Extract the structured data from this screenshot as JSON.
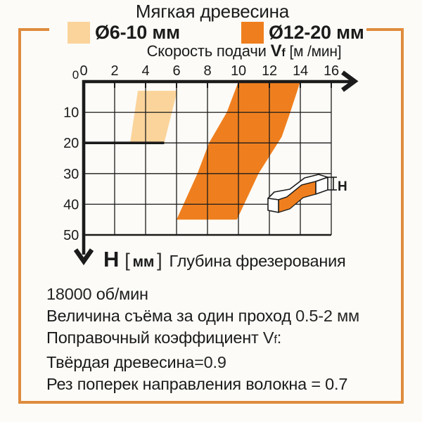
{
  "colors": {
    "accent_dark": "#ef7f1e",
    "accent_light": "#fbd49b",
    "frame": "#df8c3e",
    "ink": "#1b1b1b",
    "background": "#fcfbf7"
  },
  "title": "Мягкая древесина",
  "legend": {
    "items": [
      {
        "label": "Ø6-10 мм",
        "color": "#fbd49b"
      },
      {
        "label": "Ø12-20 мм",
        "color": "#ef7f1e"
      }
    ]
  },
  "x_axis": {
    "name": "Скорость подачи",
    "symbol": "V",
    "symbol_sub": "f",
    "units": "[м /мин]"
  },
  "y_axis": {
    "symbol": "H",
    "units_open": "[",
    "units_text": "мм",
    "units_close": "]",
    "name": "Глубина фрезерования"
  },
  "icon_label": "H",
  "chart_data": {
    "type": "area",
    "title": "Мягкая древесина",
    "xlabel": "Скорость подачи Vf [м/мин]",
    "ylabel": "H [мм] Глубина фрезерования",
    "xlim": [
      0,
      16
    ],
    "ylim": [
      0,
      50
    ],
    "xticks": [
      0,
      2,
      4,
      6,
      8,
      10,
      12,
      14,
      16
    ],
    "yticks": [
      0,
      10,
      20,
      30,
      40,
      50
    ],
    "grid": true,
    "legend_position": "top",
    "series": [
      {
        "name": "Ø6-10 мм",
        "color": "#fbd49b",
        "region": [
          [
            3.5,
            3
          ],
          [
            6.05,
            3
          ],
          [
            5.2,
            20
          ],
          [
            3.0,
            20
          ]
        ]
      },
      {
        "name": "Ø12-20 мм",
        "color": "#ef7f1e",
        "region": [
          [
            10,
            0
          ],
          [
            14,
            0
          ],
          [
            13.35,
            10
          ],
          [
            12.8,
            18
          ],
          [
            11.3,
            30
          ],
          [
            9.9,
            45
          ],
          [
            6,
            45
          ],
          [
            7.35,
            30
          ],
          [
            8.1,
            20
          ],
          [
            9.25,
            10
          ]
        ]
      }
    ],
    "depth_limit_line": {
      "y": 20,
      "x_from": 0,
      "x_to": 5.2
    }
  },
  "notes": [
    {
      "segments": [
        {
          "t": "18000",
          "cls": "thin"
        },
        {
          "t": " об/мин",
          "cls": ""
        }
      ]
    },
    {
      "segments": [
        {
          "t": "Величина съёма за один проход ",
          "cls": ""
        },
        {
          "t": "0.5-2 мм",
          "cls": "thin"
        }
      ]
    },
    {
      "segments": [
        {
          "t": "Поправочный коэффициент ",
          "cls": ""
        },
        {
          "t": "V",
          "cls": "thin"
        },
        {
          "t": "f",
          "cls": "thin sub"
        },
        {
          "t": ":",
          "cls": "thin"
        }
      ]
    },
    {
      "segments": [
        {
          "t": "Твёрдая древесина",
          "cls": ""
        },
        {
          "t": "=0.9",
          "cls": "thin"
        }
      ]
    },
    {
      "segments": [
        {
          "t": "Рез поперек направления волокна = 0.7",
          "cls": ""
        }
      ]
    }
  ]
}
